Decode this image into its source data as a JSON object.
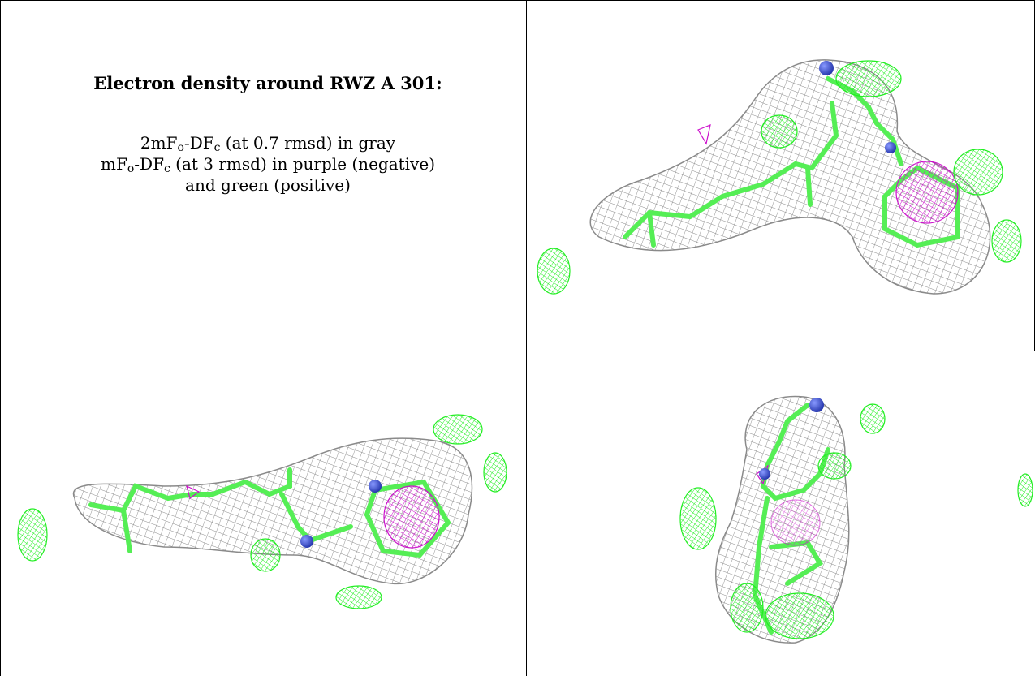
{
  "caption": {
    "title": "Electron density around RWZ A 301:",
    "line1": {
      "pre": "2mF",
      "s1": "o",
      "mid": "-DF",
      "s2": "c",
      "post": " (at 0.7 rmsd) in gray"
    },
    "line2": {
      "pre": "mF",
      "s1": "o",
      "mid": "-DF",
      "s2": "c",
      "post": " (at 3 rmsd) in purple (negative)"
    },
    "line3": "and green (positive)"
  },
  "colors": {
    "mesh_2fofc": "#8a8a8a",
    "mesh_negative": "#cc11cc",
    "mesh_positive": "#22ee22",
    "carbon_sticks": "#55ee55",
    "nitrogen_atoms": "#3344cc"
  }
}
